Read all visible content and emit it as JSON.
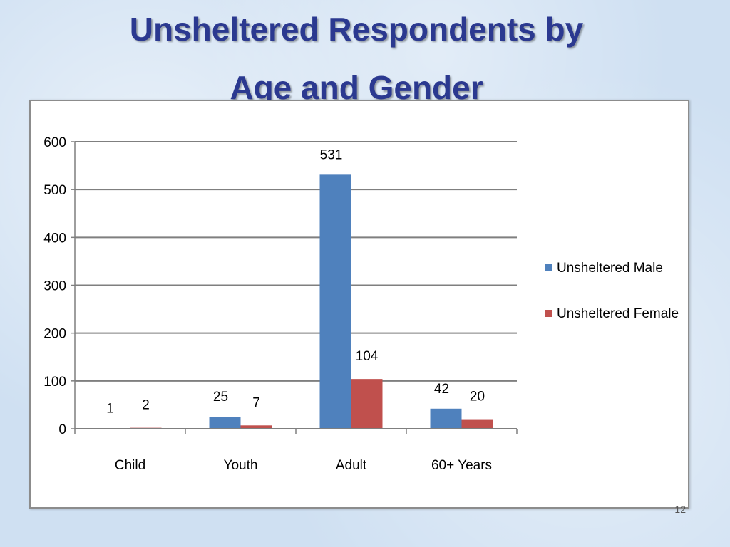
{
  "slide": {
    "title_line1": "Unsheltered Respondents by",
    "title_line2": "Age and Gender",
    "slide_number": "12"
  },
  "chart_data": {
    "type": "bar",
    "title": "",
    "xlabel": "",
    "ylabel": "",
    "categories": [
      "Child",
      "Youth",
      "Adult",
      "60+ Years"
    ],
    "series": [
      {
        "name": "Unsheltered Male",
        "color": "#4f81bd",
        "values": [
          1,
          25,
          531,
          42
        ]
      },
      {
        "name": "Unsheltered Female",
        "color": "#c0504d",
        "values": [
          2,
          7,
          104,
          20
        ]
      }
    ],
    "ylim": [
      0,
      600
    ],
    "yticks": [
      0,
      100,
      200,
      300,
      400,
      500,
      600
    ],
    "grid": true,
    "legend_position": "right",
    "data_labels": true
  }
}
